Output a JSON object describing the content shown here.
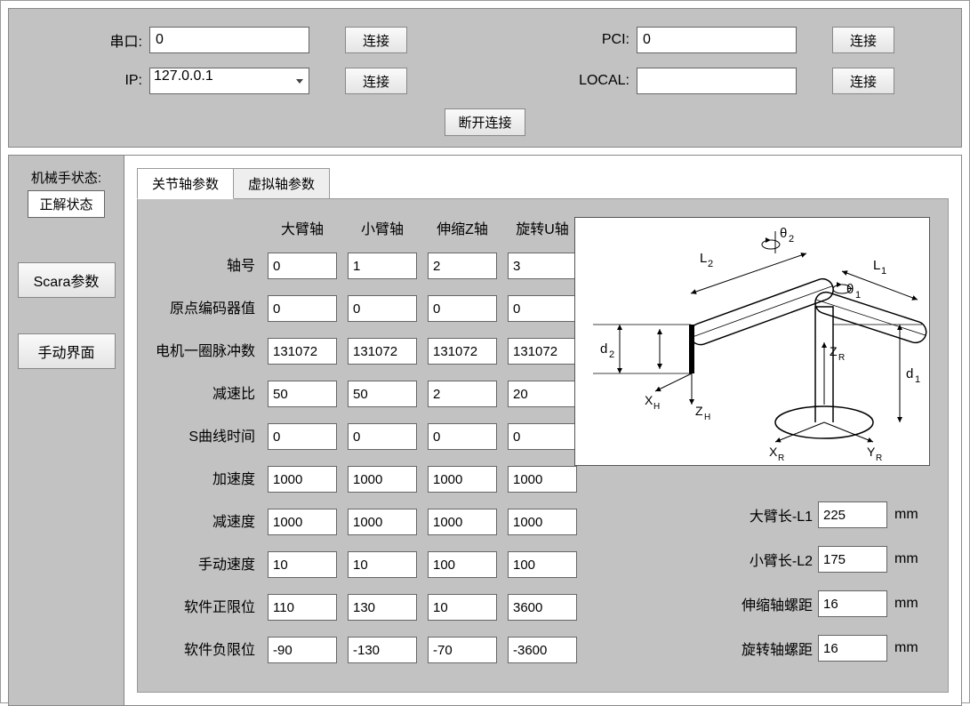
{
  "connection": {
    "serial": {
      "label": "串口:",
      "value": "0",
      "btn": "连接"
    },
    "pci": {
      "label": "PCI:",
      "value": "0",
      "btn": "连接"
    },
    "ip": {
      "label": "IP:",
      "value": "127.0.0.1",
      "btn": "连接"
    },
    "local": {
      "label": "LOCAL:",
      "value": "",
      "btn": "连接"
    },
    "disconnect": "断开连接"
  },
  "sidebar": {
    "status_label": "机械手状态:",
    "status_value": "正解状态",
    "btn_scara": "Scara参数",
    "btn_manual": "手动界面"
  },
  "tabs": {
    "t0": "关节轴参数",
    "t1": "虚拟轴参数"
  },
  "param_table": {
    "columns": [
      "大臂轴",
      "小臂轴",
      "伸缩Z轴",
      "旋转U轴"
    ],
    "row_labels": [
      "轴号",
      "原点编码器值",
      "电机一圈脉冲数",
      "减速比",
      "S曲线时间",
      "加速度",
      "减速度",
      "手动速度",
      "软件正限位",
      "软件负限位"
    ],
    "data": [
      [
        "0",
        "1",
        "2",
        "3"
      ],
      [
        "0",
        "0",
        "0",
        "0"
      ],
      [
        "131072",
        "131072",
        "131072",
        "131072"
      ],
      [
        "50",
        "50",
        "2",
        "20"
      ],
      [
        "0",
        "0",
        "0",
        "0"
      ],
      [
        "1000",
        "1000",
        "1000",
        "1000"
      ],
      [
        "1000",
        "1000",
        "1000",
        "1000"
      ],
      [
        "10",
        "10",
        "100",
        "100"
      ],
      [
        "110",
        "130",
        "10",
        "3600"
      ],
      [
        "-90",
        "-130",
        "-70",
        "-3600"
      ]
    ]
  },
  "arm": {
    "l1": {
      "label": "大臂长-L1",
      "value": "225",
      "unit": "mm"
    },
    "l2": {
      "label": "小臂长-L2",
      "value": "175",
      "unit": "mm"
    },
    "z": {
      "label": "伸缩轴螺距",
      "value": "16",
      "unit": "mm"
    },
    "u": {
      "label": "旋转轴螺距",
      "value": "16",
      "unit": "mm"
    }
  },
  "diagram": {
    "labels": {
      "L1": "L1",
      "L2": "L2",
      "th1": "θ1",
      "th2": "θ2",
      "d1": "d1",
      "d2": "d2",
      "ZR": "ZR",
      "XR": "XR",
      "YR": "YR",
      "ZH": "ZH",
      "XH": "XH",
      "sub": "₁"
    }
  },
  "colors": {
    "panel_bg": "#c2c2c2",
    "input_bg": "#ffffff",
    "border": "#666666"
  }
}
